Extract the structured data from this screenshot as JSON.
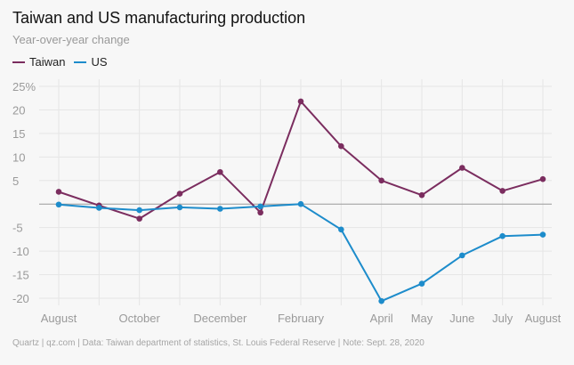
{
  "title": "Taiwan and US manufacturing production",
  "subtitle": "Year-over-year change",
  "footer": "Quartz | qz.com | Data: Taiwan department of statistics, St. Louis Federal Reserve | Note: Sept. 28, 2020",
  "chart_data": {
    "type": "line",
    "title": "Taiwan and US manufacturing production",
    "subtitle": "Year-over-year change",
    "legend_position": "top-left",
    "grid": true,
    "ylim": [
      -20,
      25
    ],
    "y_ticks": [
      25,
      20,
      15,
      10,
      5,
      0,
      -5,
      -10,
      -15,
      -20
    ],
    "y_tick_labels": [
      "25%",
      "20",
      "15",
      "10",
      "5",
      "",
      "-5",
      "-10",
      "-15",
      "-20"
    ],
    "x": [
      "2019-08",
      "2019-09",
      "2019-10",
      "2019-11",
      "2019-12",
      "2020-01",
      "2020-02",
      "2020-03",
      "2020-04",
      "2020-05",
      "2020-06",
      "2020-07",
      "2020-08"
    ],
    "x_tick_labels": [
      "August",
      "",
      "October",
      "",
      "December",
      "",
      "February",
      "",
      "April",
      "May",
      "June",
      "July",
      "August"
    ],
    "series": [
      {
        "name": "Taiwan",
        "color": "#7b2d5f",
        "values": [
          2.6,
          -0.3,
          -3.1,
          2.2,
          6.8,
          -1.8,
          21.8,
          12.3,
          5.0,
          1.9,
          7.7,
          2.8,
          5.3
        ]
      },
      {
        "name": "US",
        "color": "#1d8ccb",
        "values": [
          -0.1,
          -0.8,
          -1.3,
          -0.7,
          -1.0,
          -0.5,
          0.0,
          -5.4,
          -20.6,
          -16.9,
          -10.9,
          -6.8,
          -6.5
        ]
      }
    ]
  }
}
